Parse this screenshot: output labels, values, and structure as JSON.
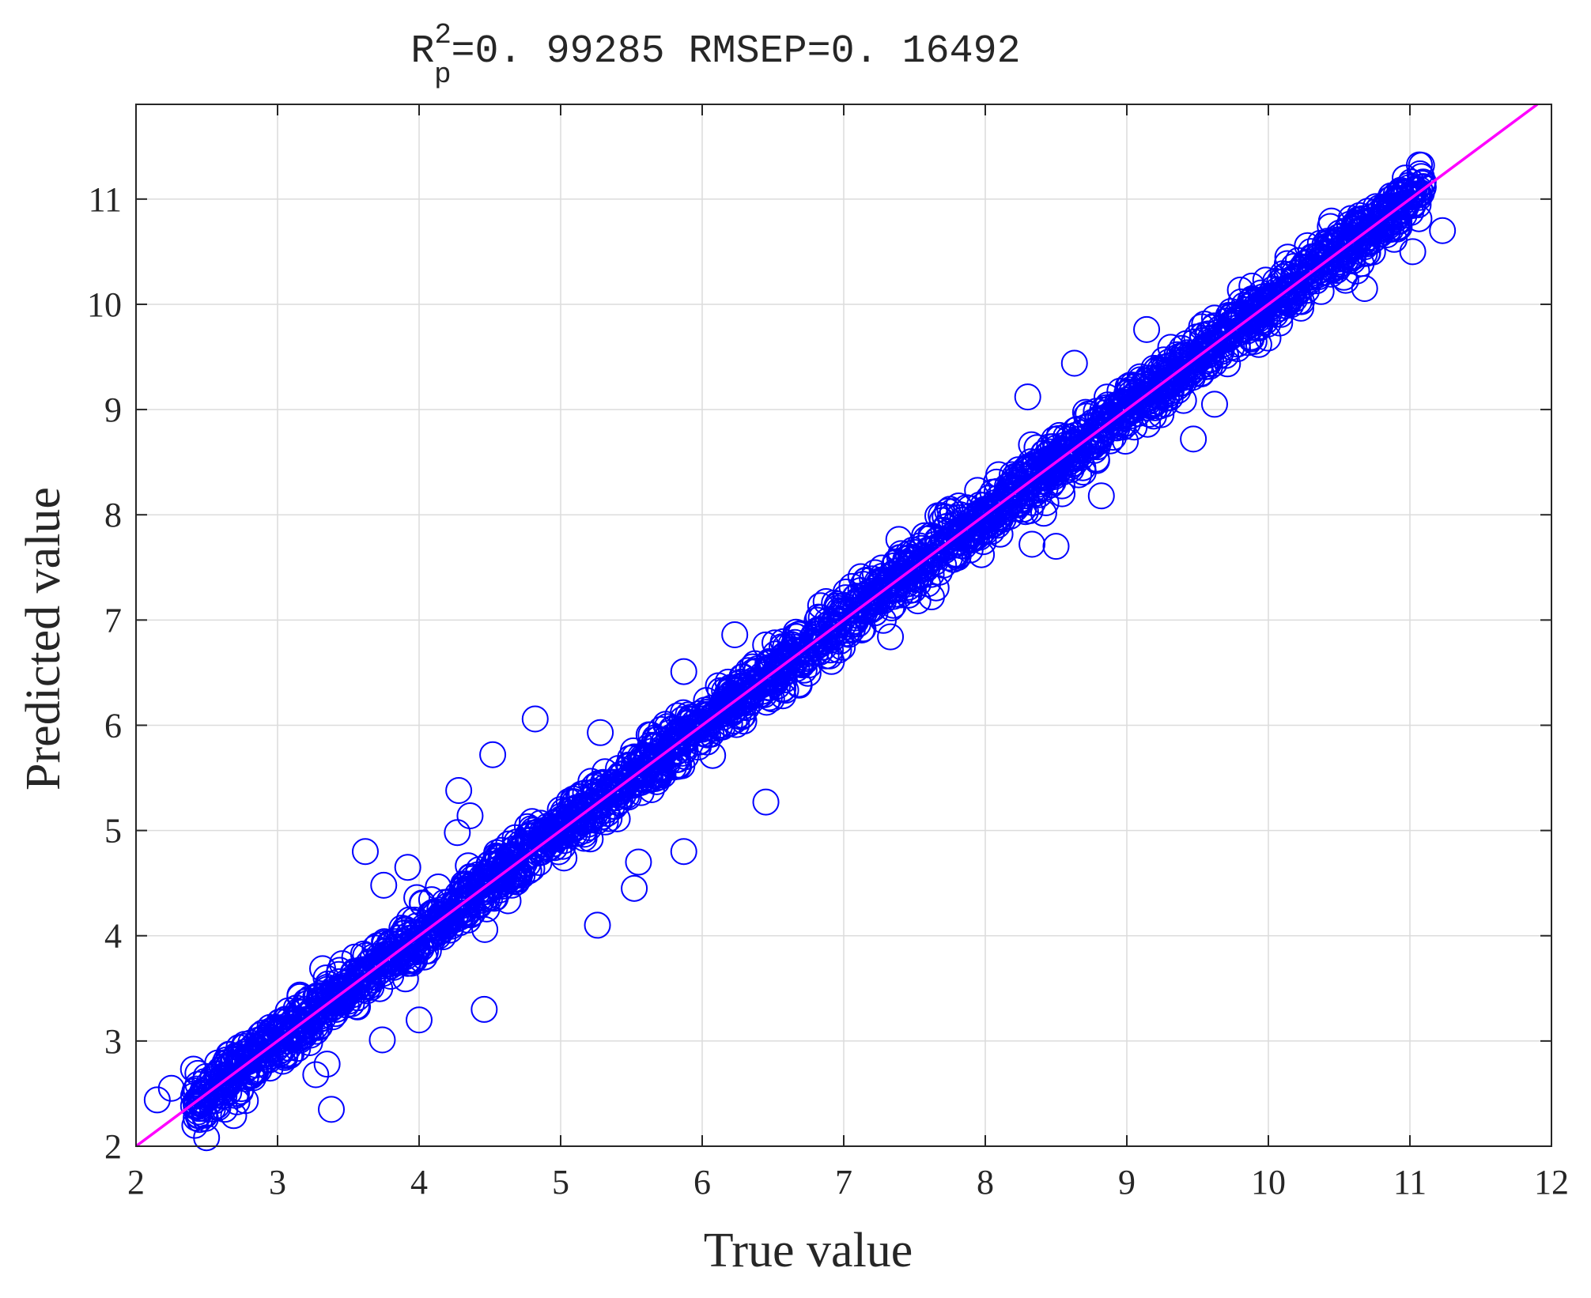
{
  "chart_data": {
    "type": "scatter",
    "title": {
      "r_base": "R",
      "r_sup": "2",
      "r_sub": "p",
      "r_value": "=0. 99285",
      "rmsep": "RMSEP=0. 16492"
    },
    "xlabel": "True value",
    "ylabel": "Predicted value",
    "xlim": [
      2,
      12
    ],
    "ylim": [
      2,
      11.9
    ],
    "xticks": [
      2,
      3,
      4,
      5,
      6,
      7,
      8,
      9,
      10,
      11,
      12
    ],
    "yticks": [
      2,
      3,
      4,
      5,
      6,
      7,
      8,
      9,
      10,
      11
    ],
    "xtick_labels": [
      "2",
      "3",
      "4",
      "5",
      "6",
      "7",
      "8",
      "9",
      "10",
      "11",
      "12"
    ],
    "ytick_labels": [
      "2",
      "3",
      "4",
      "5",
      "6",
      "7",
      "8",
      "9",
      "10",
      "11"
    ],
    "grid": true,
    "reference_line": {
      "x": [
        2,
        11.9
      ],
      "y": [
        2,
        11.9
      ]
    },
    "marker": "open-circle",
    "colors": {
      "points": "#0000ff",
      "line": "#ff00ff",
      "grid": "#dcdcdc",
      "axes": "#262626"
    },
    "outliers": [
      {
        "x": 2.15,
        "y": 2.44
      },
      {
        "x": 2.25,
        "y": 2.55
      },
      {
        "x": 3.38,
        "y": 2.35
      },
      {
        "x": 3.27,
        "y": 2.68
      },
      {
        "x": 3.35,
        "y": 2.78
      },
      {
        "x": 3.74,
        "y": 3.01
      },
      {
        "x": 4.0,
        "y": 3.2
      },
      {
        "x": 4.46,
        "y": 3.3
      },
      {
        "x": 3.62,
        "y": 4.8
      },
      {
        "x": 3.92,
        "y": 4.65
      },
      {
        "x": 3.75,
        "y": 4.48
      },
      {
        "x": 4.28,
        "y": 5.38
      },
      {
        "x": 4.52,
        "y": 5.72
      },
      {
        "x": 4.82,
        "y": 6.06
      },
      {
        "x": 4.36,
        "y": 5.14
      },
      {
        "x": 4.27,
        "y": 4.98
      },
      {
        "x": 5.26,
        "y": 4.1
      },
      {
        "x": 5.52,
        "y": 4.45
      },
      {
        "x": 5.55,
        "y": 4.7
      },
      {
        "x": 5.87,
        "y": 4.8
      },
      {
        "x": 5.87,
        "y": 6.51
      },
      {
        "x": 5.28,
        "y": 5.93
      },
      {
        "x": 6.45,
        "y": 5.27
      },
      {
        "x": 6.23,
        "y": 6.86
      },
      {
        "x": 8.33,
        "y": 7.72
      },
      {
        "x": 8.5,
        "y": 7.7
      },
      {
        "x": 8.82,
        "y": 8.18
      },
      {
        "x": 8.3,
        "y": 9.12
      },
      {
        "x": 8.63,
        "y": 9.44
      },
      {
        "x": 9.14,
        "y": 9.76
      },
      {
        "x": 9.47,
        "y": 8.72
      },
      {
        "x": 11.23,
        "y": 10.7
      },
      {
        "x": 11.02,
        "y": 10.5
      },
      {
        "x": 10.68,
        "y": 10.15
      },
      {
        "x": 10.88,
        "y": 10.83
      },
      {
        "x": 7.62,
        "y": 7.22
      },
      {
        "x": 7.33,
        "y": 6.84
      },
      {
        "x": 6.57,
        "y": 6.28
      },
      {
        "x": 9.62,
        "y": 9.05
      }
    ],
    "bulk": {
      "x_range": [
        2.4,
        11.1
      ],
      "relation": "y ≈ x",
      "residual_sd": 0.12
    }
  }
}
